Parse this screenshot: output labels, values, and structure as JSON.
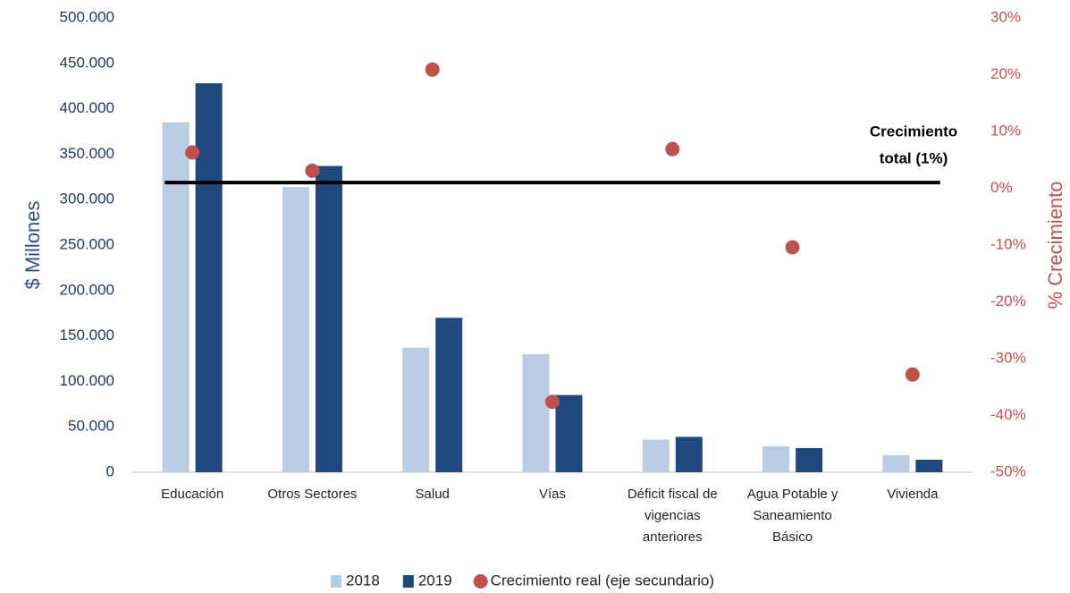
{
  "chart_data": {
    "type": "bar",
    "categories": [
      [
        "Educación"
      ],
      [
        "Otros Sectores"
      ],
      [
        "Salud"
      ],
      [
        "Vías"
      ],
      [
        "Déficit fiscal de",
        "vigencias",
        "anteriores"
      ],
      [
        "Agua Potable y",
        "Saneamiento",
        "Básico"
      ],
      [
        "Vivienda"
      ]
    ],
    "series": [
      {
        "name": "2018",
        "color": "#b8cce4",
        "values": [
          385000,
          314000,
          137000,
          130000,
          36000,
          28500,
          18700
        ]
      },
      {
        "name": "2019",
        "color": "#1f497d",
        "values": [
          428000,
          337000,
          170000,
          85000,
          39000,
          26600,
          13800
        ]
      },
      {
        "name": "Crecimiento real (eje secundario)",
        "color": "#c0504d",
        "axis": "y2",
        "values": [
          6.3,
          3.1,
          20.9,
          -37.6,
          6.9,
          -10.4,
          -32.8
        ]
      }
    ],
    "ylabel": "$ Millones",
    "y2label": "% Crecimiento",
    "ylim": [
      0,
      500000
    ],
    "yticks": [
      0,
      {
        "value": 50000,
        "label": "50.000"
      },
      {
        "value": 100000,
        "label": "100.000"
      },
      {
        "value": 150000,
        "label": "150.000"
      },
      {
        "value": 200000,
        "label": "200.000"
      },
      {
        "value": 250000,
        "label": "250.000"
      },
      {
        "value": 300000,
        "label": "300.000"
      },
      {
        "value": 350000,
        "label": "350.000"
      },
      {
        "value": 400000,
        "label": "400.000"
      },
      {
        "value": 450000,
        "label": "450.000"
      },
      {
        "value": 500000,
        "label": "500.000"
      }
    ],
    "y2lim": [
      -50,
      30
    ],
    "y2ticks": [
      {
        "value": -50,
        "label": "-50%"
      },
      {
        "value": -40,
        "label": "-40%"
      },
      {
        "value": -30,
        "label": "-30%"
      },
      {
        "value": -20,
        "label": "-20%"
      },
      {
        "value": -10,
        "label": "-10%"
      },
      {
        "value": 0,
        "label": "0%"
      },
      {
        "value": 10,
        "label": "10%"
      },
      {
        "value": 20,
        "label": "20%"
      },
      {
        "value": 30,
        "label": "30%"
      }
    ],
    "reference_line": {
      "value": 1,
      "axis": "y2",
      "label": [
        "Crecimiento",
        "total (1%)"
      ]
    },
    "legend": "bottom"
  }
}
